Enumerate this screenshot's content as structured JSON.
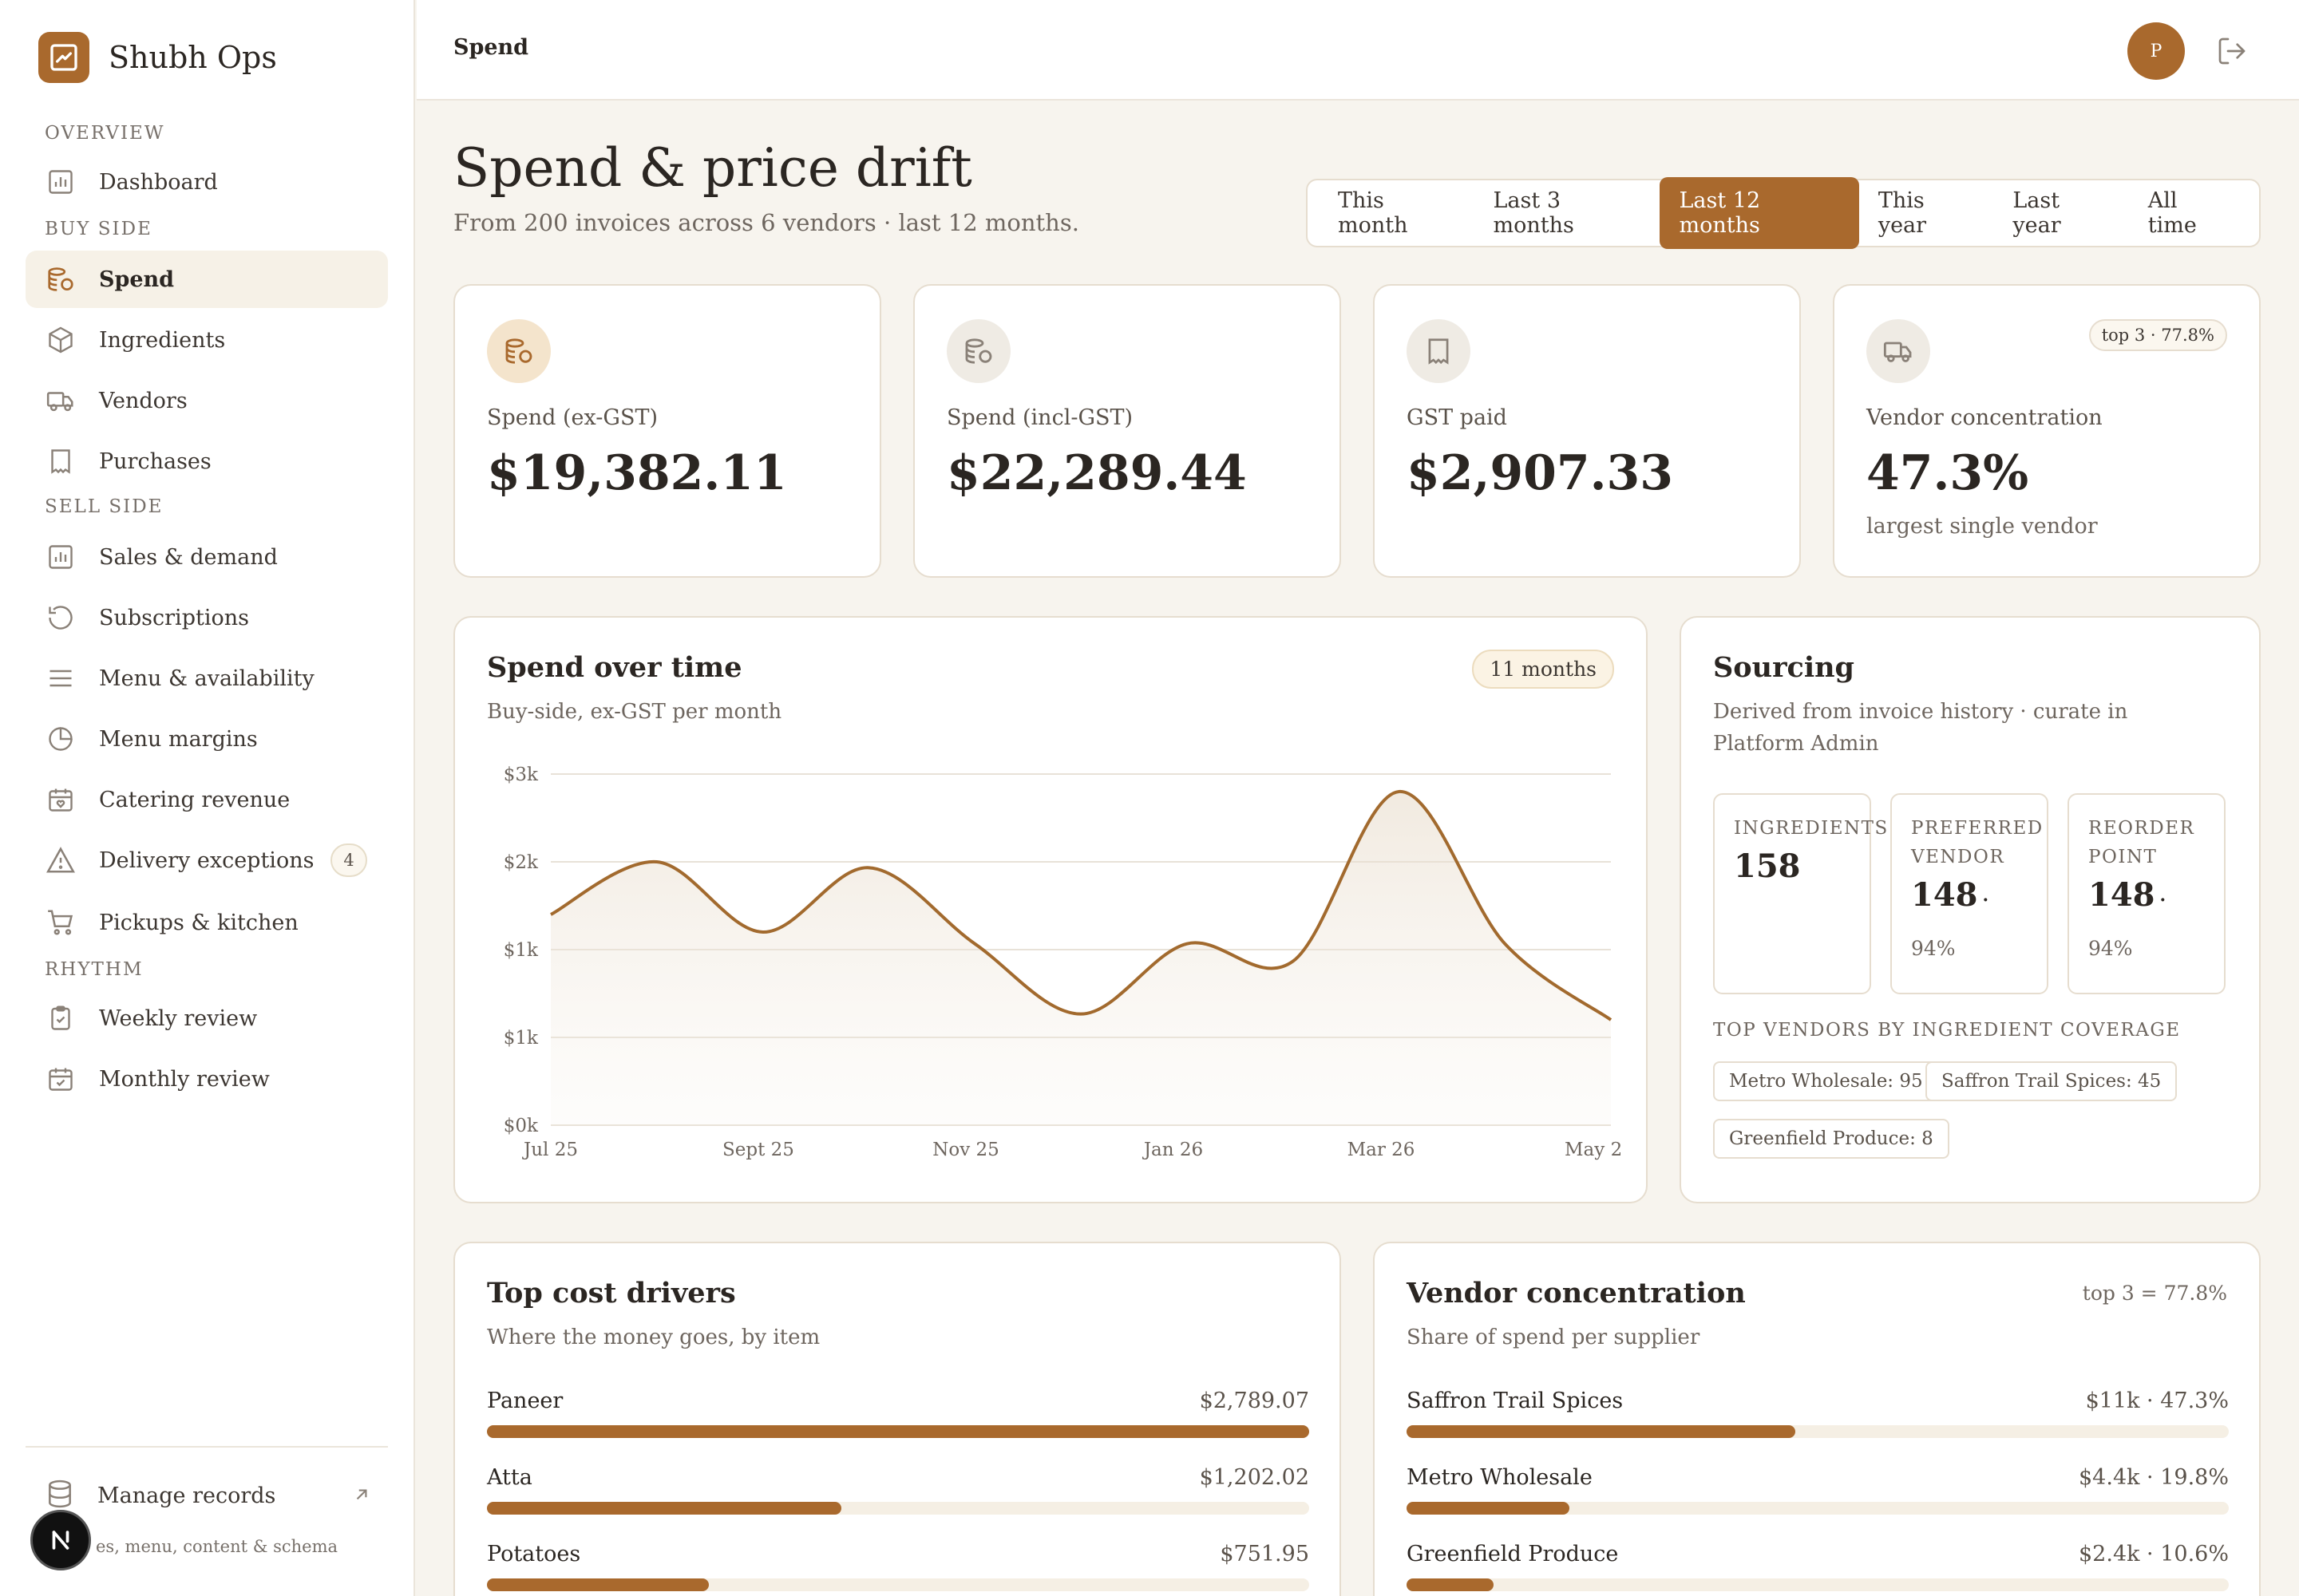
{
  "app": {
    "brand": "Shubh Ops",
    "breadcrumb": "Spend",
    "avatar_initial": "P"
  },
  "sidebar": {
    "sections": [
      {
        "label": "OVERVIEW",
        "items": [
          {
            "label": "Dashboard",
            "icon": "bar-chart-icon"
          }
        ]
      },
      {
        "label": "BUY SIDE",
        "items": [
          {
            "label": "Spend",
            "icon": "coins-icon",
            "active": true
          },
          {
            "label": "Ingredients",
            "icon": "package-icon"
          },
          {
            "label": "Vendors",
            "icon": "truck-icon"
          },
          {
            "label": "Purchases",
            "icon": "receipt-icon"
          }
        ]
      },
      {
        "label": "SELL SIDE",
        "items": [
          {
            "label": "Sales & demand",
            "icon": "bar-chart-icon"
          },
          {
            "label": "Subscriptions",
            "icon": "refresh-icon"
          },
          {
            "label": "Menu & availability",
            "icon": "menu-lines-icon"
          },
          {
            "label": "Menu margins",
            "icon": "pie-chart-icon"
          },
          {
            "label": "Catering revenue",
            "icon": "calendar-heart-icon"
          },
          {
            "label": "Delivery exceptions",
            "icon": "warning-icon",
            "badge": "4"
          },
          {
            "label": "Pickups & kitchen",
            "icon": "cart-icon"
          }
        ]
      },
      {
        "label": "RHYTHM",
        "items": [
          {
            "label": "Weekly review",
            "icon": "clipboard-check-icon"
          },
          {
            "label": "Monthly review",
            "icon": "calendar-check-icon"
          }
        ]
      }
    ],
    "manage_label": "Manage records",
    "manage_sub": "es, menu, content & schema"
  },
  "page": {
    "title": "Spend & price drift",
    "subtitle": "From 200 invoices across 6 vendors · last 12 months.",
    "ranges": [
      "This month",
      "Last 3 months",
      "Last 12 months",
      "This year",
      "Last year",
      "All time"
    ],
    "selected_range": "Last 12 months"
  },
  "kpis": [
    {
      "label": "Spend (ex-GST)",
      "value": "$19,382.11",
      "icon": "coins-icon"
    },
    {
      "label": "Spend (incl-GST)",
      "value": "$22,289.44",
      "icon": "coins-icon"
    },
    {
      "label": "GST paid",
      "value": "$2,907.33",
      "icon": "receipt-icon"
    },
    {
      "label": "Vendor concentration",
      "value": "47.3%",
      "note": "largest single vendor",
      "pill": "top 3 · 77.8%",
      "icon": "truck-icon"
    }
  ],
  "spend_chart": {
    "title": "Spend over time",
    "subtitle": "Buy-side, ex-GST per month",
    "badge": "11 months"
  },
  "chart_data": {
    "type": "area",
    "x": [
      "Jul 25",
      "Aug 25",
      "Sept 25",
      "Oct 25",
      "Nov 25",
      "Dec 25",
      "Jan 26",
      "Feb 26",
      "Mar 26",
      "Apr 26",
      "May 26"
    ],
    "values": [
      1800,
      2250,
      1650,
      2200,
      1550,
      950,
      1550,
      1400,
      2850,
      1550,
      900
    ],
    "x_tick_labels": [
      "Jul 25",
      "Sept 25",
      "Nov 25",
      "Jan 26",
      "Mar 26",
      "May 2"
    ],
    "y_tick_labels": [
      "$3k",
      "$2k",
      "$1k",
      "$1k",
      "$0k"
    ],
    "ylim": [
      0,
      3000
    ],
    "grid": true,
    "color": "#a26a2e"
  },
  "sourcing": {
    "title": "Sourcing",
    "subtitle": "Derived from invoice history · curate in Platform Admin",
    "stats": [
      {
        "label": "INGREDIENTS",
        "value": "158"
      },
      {
        "label": "PREFERRED VENDOR",
        "value": "148",
        "dot": "·",
        "pct": "94%"
      },
      {
        "label": "REORDER POINT",
        "value": "148",
        "dot": "·",
        "pct": "94%"
      }
    ],
    "top_label": "TOP VENDORS BY INGREDIENT COVERAGE",
    "vendors": [
      "Metro Wholesale: 95",
      "Saffron Trail Spices: 45",
      "Greenfield Produce: 8"
    ]
  },
  "cost_drivers": {
    "title": "Top cost drivers",
    "subtitle": "Where the money goes, by item",
    "items": [
      {
        "name": "Paneer",
        "amount": "$2,789.07",
        "share": 1.0
      },
      {
        "name": "Atta",
        "amount": "$1,202.02",
        "share": 0.431
      },
      {
        "name": "Potatoes",
        "amount": "$751.95",
        "share": 0.27
      }
    ]
  },
  "vendor_conc": {
    "title": "Vendor concentration",
    "subtitle": "Share of spend per supplier",
    "tag": "top 3 = 77.8%",
    "items": [
      {
        "name": "Saffron Trail Spices",
        "amount": "$11k · 47.3%",
        "share": 0.473
      },
      {
        "name": "Metro Wholesale",
        "amount": "$4.4k · 19.8%",
        "share": 0.198
      },
      {
        "name": "Greenfield Produce",
        "amount": "$2.4k · 10.6%",
        "share": 0.106
      }
    ]
  }
}
